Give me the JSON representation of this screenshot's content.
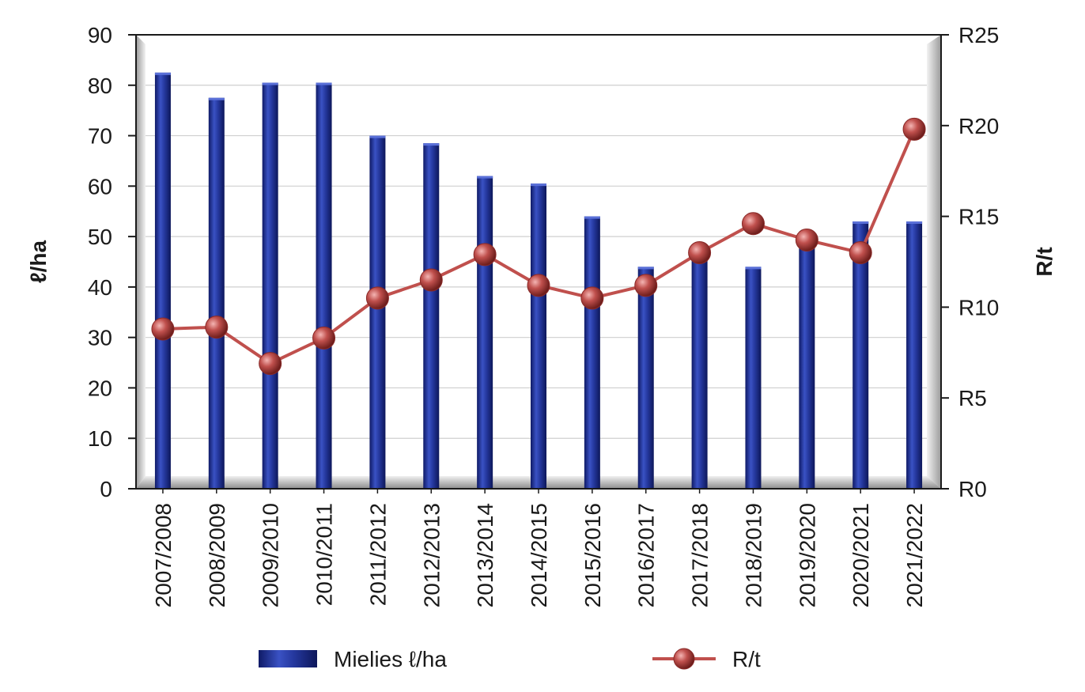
{
  "chart_data": {
    "type": "bar",
    "categories": [
      "2007/2008",
      "2008/2009",
      "2009/2010",
      "2010/2011",
      "2011/2012",
      "2012/2013",
      "2013/2014",
      "2014/2015",
      "2015/2016",
      "2016/2017",
      "2017/2018",
      "2018/2019",
      "2019/2020",
      "2020/2021",
      "2021/2022"
    ],
    "series": [
      {
        "name": "Mielies ℓ/ha",
        "type": "bar",
        "axis": "left",
        "color": "#1f2f8f",
        "values": [
          82.5,
          77.5,
          80.5,
          80.5,
          70,
          68.5,
          62,
          60.5,
          54,
          44,
          46,
          44,
          49,
          53,
          53
        ]
      },
      {
        "name": "R/t",
        "type": "line",
        "axis": "right",
        "color": "#c0504d",
        "values": [
          8.8,
          8.9,
          6.9,
          8.3,
          10.5,
          11.5,
          12.9,
          11.2,
          10.5,
          11.2,
          13.0,
          14.6,
          13.7,
          13.0,
          19.8
        ]
      }
    ],
    "ylabel": "ℓ/ha",
    "ylabel_right": "R/t",
    "ylim": [
      0,
      90
    ],
    "ylim_right": [
      0,
      25
    ],
    "yticks": [
      "0",
      "10",
      "20",
      "30",
      "40",
      "50",
      "60",
      "70",
      "80",
      "90"
    ],
    "yticks_right": [
      "R0",
      "R5",
      "R10",
      "R15",
      "R20",
      "R25"
    ],
    "grid": true,
    "legend": "bottom"
  }
}
